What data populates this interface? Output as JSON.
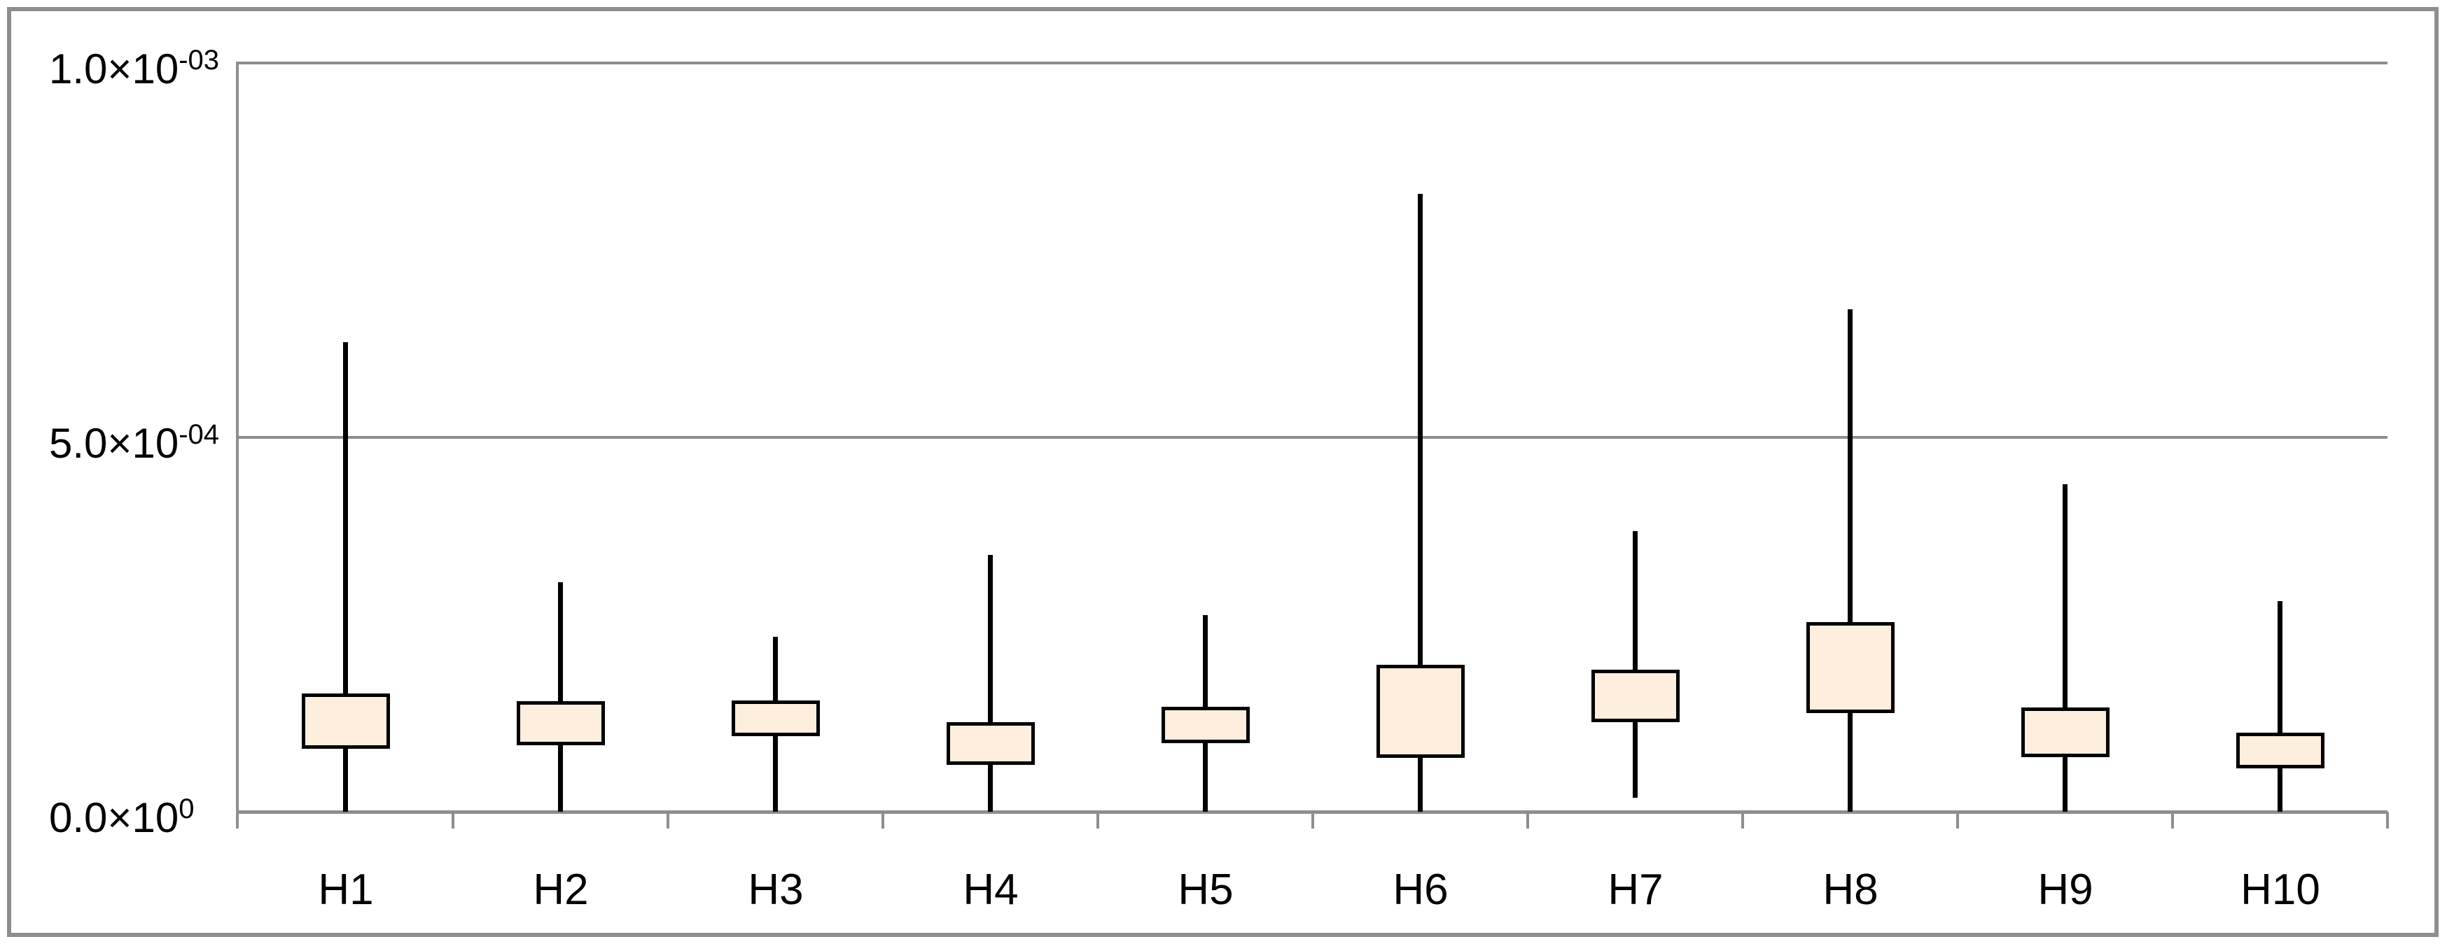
{
  "chart_data": {
    "type": "box",
    "title": "",
    "xlabel": "",
    "ylabel": "",
    "categories": [
      "H1",
      "H2",
      "H3",
      "H4",
      "H5",
      "H6",
      "H7",
      "H8",
      "H9",
      "H10"
    ],
    "values": [
      {
        "category": "H1",
        "min": 0.0,
        "q1": 8.6e-05,
        "q3": 0.000156,
        "max": 0.000627
      },
      {
        "category": "H2",
        "min": 0.0,
        "q1": 9.1e-05,
        "q3": 0.000146,
        "max": 0.000307
      },
      {
        "category": "H3",
        "min": 0.0,
        "q1": 0.000103,
        "q3": 0.000147,
        "max": 0.000234
      },
      {
        "category": "H4",
        "min": 0.0,
        "q1": 6.5e-05,
        "q3": 0.000118,
        "max": 0.000343
      },
      {
        "category": "H5",
        "min": 0.0,
        "q1": 9.3e-05,
        "q3": 0.000138,
        "max": 0.000263
      },
      {
        "category": "H6",
        "min": 0.0,
        "q1": 7.3e-05,
        "q3": 0.000194,
        "max": 0.000825
      },
      {
        "category": "H7",
        "min": 1.9e-05,
        "q1": 0.000122,
        "q3": 0.000188,
        "max": 0.000375
      },
      {
        "category": "H8",
        "min": 0.0,
        "q1": 0.000133,
        "q3": 0.000251,
        "max": 0.000671
      },
      {
        "category": "H9",
        "min": 0.0,
        "q1": 7.4e-05,
        "q3": 0.000137,
        "max": 0.000437
      },
      {
        "category": "H10",
        "min": 0.0,
        "q1": 6e-05,
        "q3": 0.000104,
        "max": 0.000281
      }
    ],
    "median_shown": false,
    "ylim": [
      0,
      0.001
    ],
    "yticks": [
      {
        "value": 0.001,
        "base": "1.0×10",
        "exp": "-03"
      },
      {
        "value": 0.0005,
        "base": "5.0×10",
        "exp": "-04"
      },
      {
        "value": 0.0,
        "base": "0.0×10",
        "exp": "0"
      }
    ],
    "grid": "horizontal",
    "legend": null,
    "colors": {
      "background": "#ffffff",
      "frame": "#8e8e8e",
      "gridline": "#8e8e8e",
      "box_fill": "#fdeedd",
      "box_border": "#000000",
      "whisker": "#000000",
      "text": "#000000"
    }
  }
}
